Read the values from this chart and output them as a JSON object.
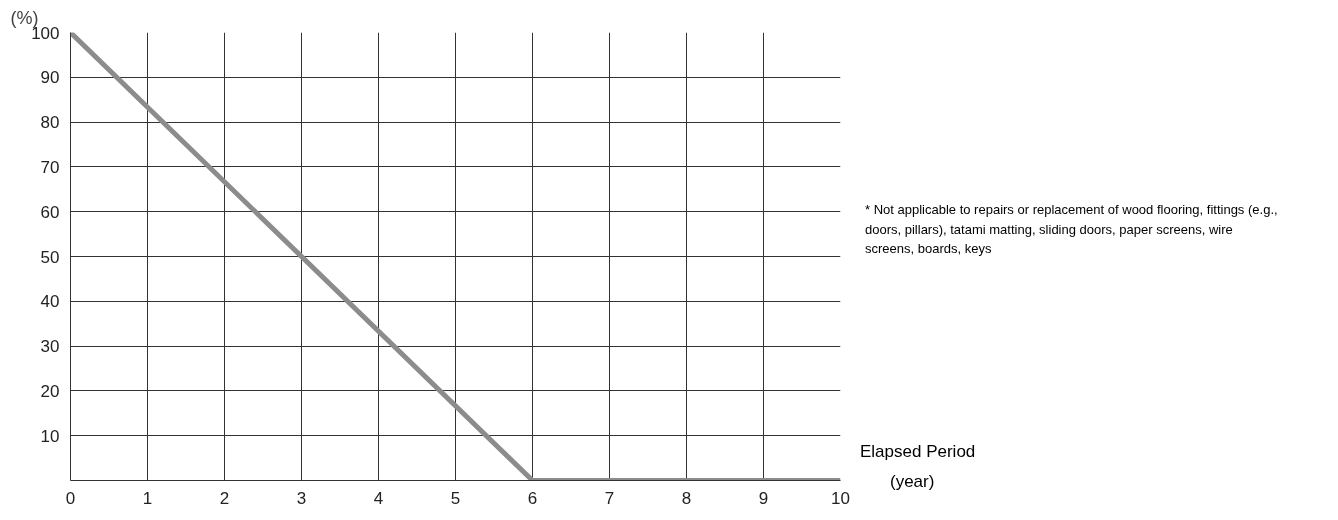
{
  "chart_data": {
    "type": "line",
    "x": [
      0,
      6,
      10
    ],
    "series": [
      {
        "color": "#8c8c8c",
        "values": [
          100,
          0,
          0
        ]
      }
    ],
    "xlabel": "Elapsed Period",
    "ylabel": "(%)",
    "xlim": [
      0,
      10
    ],
    "xticks": [
      0,
      1,
      2,
      3,
      4,
      5,
      6,
      7,
      8,
      9,
      10
    ],
    "ylim": [
      0,
      100
    ],
    "yticks": [
      10,
      20,
      30,
      40,
      50,
      60,
      70,
      80,
      90,
      100
    ],
    "grid": true,
    "line_style": "solid",
    "annotations": [
      "(year)",
      "* Not applicable to repairs or replacement of wood flooring, fittings (e.g., doors, pillars), tatami matting, sliding doors, paper screens, wire screens, boards, keys"
    ]
  }
}
